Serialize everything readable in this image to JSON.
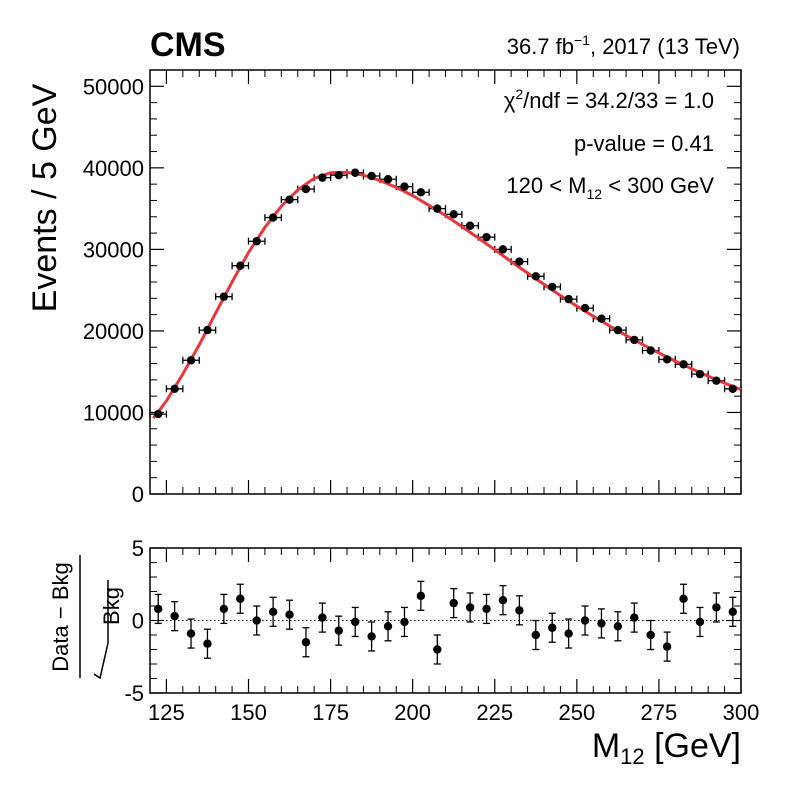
{
  "header": {
    "experiment": "CMS",
    "lumi": "36.7 fb",
    "lumi_exp": "−1",
    "lumi_rest": ", 2017 (13 TeV)"
  },
  "annotations": {
    "chi2_pre": "χ",
    "chi2_sup": "2",
    "chi2_post": "/ndf = 34.2/33 = 1.0",
    "pvalue": "p-value = 0.41",
    "range_pre": "120 < M",
    "range_sub": "12",
    "range_post": " < 300 GeV"
  },
  "axes": {
    "ylabel_top": "Events / 5 GeV",
    "ylabel_bottom_num": "Data − Bkg",
    "ylabel_bottom_den": "Bkg",
    "xlabel_main": "M",
    "xlabel_sub": "12",
    "xlabel_unit": " [GeV]"
  },
  "colors": {
    "fit": "#e8363d",
    "data": "#000000"
  },
  "chart_data": [
    {
      "type": "scatter",
      "name": "dijet-mass-spectrum",
      "xlim": [
        120,
        300
      ],
      "ylim": [
        0,
        52000
      ],
      "xticks": [
        125,
        150,
        175,
        200,
        225,
        250,
        275,
        300
      ],
      "yticks": [
        0,
        10000,
        20000,
        30000,
        40000,
        50000
      ],
      "ytick_labels": [
        "0",
        "10000",
        "20000",
        "30000",
        "40000",
        "50000"
      ],
      "bin_width": 5,
      "x": [
        122.5,
        127.5,
        132.5,
        137.5,
        142.5,
        147.5,
        152.5,
        157.5,
        162.5,
        167.5,
        172.5,
        177.5,
        182.5,
        187.5,
        192.5,
        197.5,
        202.5,
        207.5,
        212.5,
        217.5,
        222.5,
        227.5,
        232.5,
        237.5,
        242.5,
        247.5,
        252.5,
        257.5,
        262.5,
        267.5,
        272.5,
        277.5,
        282.5,
        287.5,
        292.5,
        297.5
      ],
      "y": [
        9800,
        12900,
        16400,
        20100,
        24200,
        28000,
        31000,
        33900,
        36100,
        37400,
        38800,
        39100,
        39400,
        39000,
        38600,
        37700,
        37000,
        35000,
        34300,
        32900,
        31500,
        30000,
        28500,
        26700,
        25400,
        23900,
        22800,
        21500,
        20100,
        18900,
        17600,
        16500,
        15900,
        14700,
        13900,
        12900
      ],
      "fit": {
        "x": [
          121,
          125,
          130,
          135,
          140,
          145,
          150,
          155,
          160,
          165,
          170,
          175,
          180,
          185,
          190,
          195,
          200,
          205,
          210,
          215,
          220,
          225,
          230,
          235,
          240,
          245,
          250,
          255,
          260,
          265,
          270,
          275,
          280,
          285,
          290,
          295,
          300
        ],
        "y": [
          9300,
          11400,
          14700,
          18300,
          22200,
          26000,
          29600,
          32700,
          35300,
          37300,
          38700,
          39400,
          39450,
          39100,
          38450,
          37600,
          36600,
          35400,
          34150,
          32800,
          31400,
          29950,
          28500,
          27100,
          25700,
          24350,
          23050,
          21800,
          20600,
          19450,
          18350,
          17300,
          16300,
          15350,
          14450,
          13600,
          12800
        ]
      }
    },
    {
      "type": "scatter",
      "name": "pull-distribution",
      "xlim": [
        120,
        300
      ],
      "ylim": [
        -5,
        5
      ],
      "xticks": [
        125,
        150,
        175,
        200,
        225,
        250,
        275,
        300
      ],
      "xtick_labels": [
        "125",
        "150",
        "175",
        "200",
        "225",
        "250",
        "275",
        "300"
      ],
      "yticks": [
        -5,
        0,
        5
      ],
      "ytick_labels": [
        "-5",
        "0",
        "5"
      ],
      "reference_line": 0,
      "x": [
        122.5,
        127.5,
        132.5,
        137.5,
        142.5,
        147.5,
        152.5,
        157.5,
        162.5,
        167.5,
        172.5,
        177.5,
        182.5,
        187.5,
        192.5,
        197.5,
        202.5,
        207.5,
        212.5,
        217.5,
        222.5,
        227.5,
        232.5,
        237.5,
        242.5,
        247.5,
        252.5,
        257.5,
        262.5,
        267.5,
        272.5,
        277.5,
        282.5,
        287.5,
        292.5,
        297.5
      ],
      "y": [
        0.8,
        0.3,
        -0.9,
        -1.6,
        0.8,
        1.5,
        0.0,
        0.6,
        0.4,
        -1.5,
        0.2,
        -0.7,
        -0.1,
        -1.1,
        -0.4,
        -0.1,
        1.7,
        -2.0,
        1.2,
        0.9,
        0.8,
        1.4,
        0.7,
        -1.0,
        -0.5,
        -0.9,
        0.0,
        -0.2,
        -0.4,
        0.2,
        -1.0,
        -1.8,
        1.5,
        -0.1,
        0.9,
        0.6
      ],
      "error": 1
    }
  ]
}
